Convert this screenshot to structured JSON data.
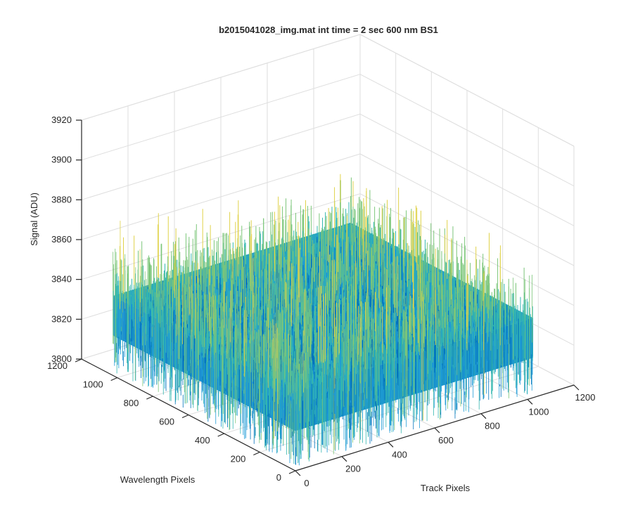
{
  "chart_data": {
    "type": "surface",
    "title": "b2015041028_img.mat int time = 2 sec  600 nm BS1",
    "xlabel": "Track Pixels",
    "ylabel": "Wavelength Pixels",
    "zlabel": "Signal (ADU)",
    "xlim": [
      0,
      1200
    ],
    "ylim": [
      0,
      1200
    ],
    "zlim": [
      3800,
      3920
    ],
    "x_ticks": [
      "0",
      "200",
      "400",
      "600",
      "800",
      "1000",
      "1200"
    ],
    "y_ticks": [
      "0",
      "200",
      "400",
      "600",
      "800",
      "1000",
      "1200"
    ],
    "z_ticks": [
      "3800",
      "3820",
      "3840",
      "3860",
      "3880",
      "3900",
      "3920"
    ],
    "data_extent": {
      "x": [
        0,
        1024
      ],
      "y": [
        0,
        1024
      ]
    },
    "signal_mean": 3840,
    "signal_noise_range": [
      3812,
      3880
    ],
    "colormap": [
      "#0072BD",
      "#1E9BD7",
      "#35B7B0",
      "#7CC67A",
      "#E0D24A"
    ],
    "grid": true
  }
}
